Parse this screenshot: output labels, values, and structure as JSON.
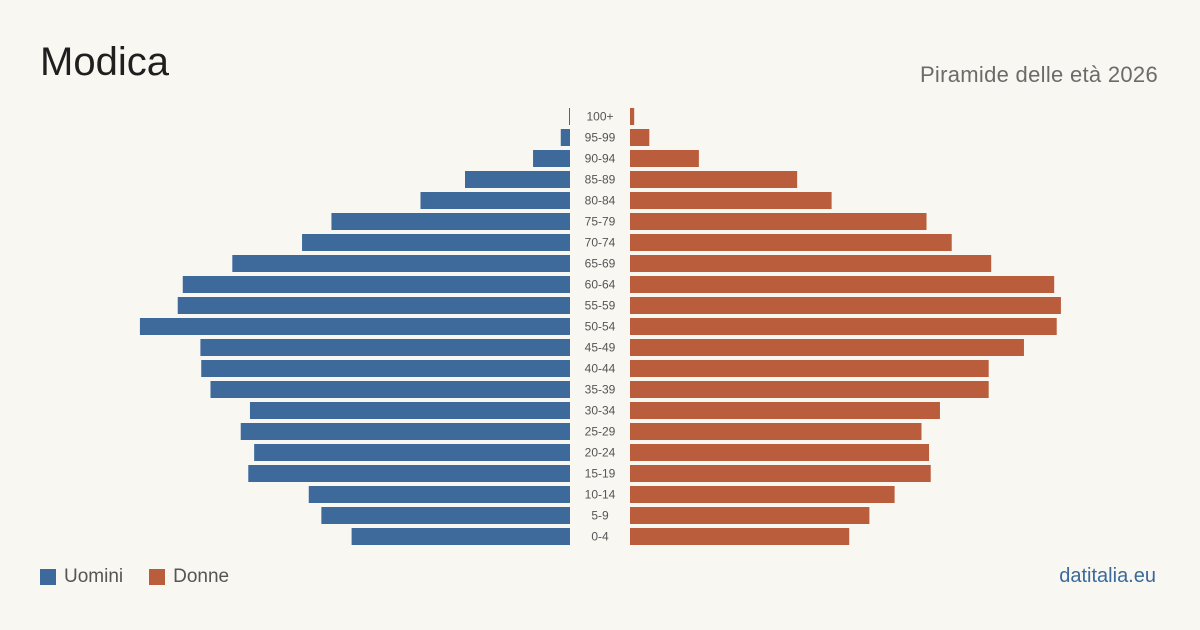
{
  "header": {
    "title": "Modica",
    "subtitle": "Piramide delle età 2026"
  },
  "legend": {
    "men_label": "Uomini",
    "women_label": "Donne"
  },
  "footer": {
    "source": "datitalia.eu"
  },
  "colors": {
    "men": "#3d6a9b",
    "women": "#b95d3c",
    "background": "#f9f7f2"
  },
  "chart_data": {
    "type": "bar",
    "orientation": "horizontal-pyramid",
    "title": "Modica",
    "subtitle": "Piramide delle età 2026",
    "categories": [
      "100+",
      "95-99",
      "90-94",
      "85-89",
      "80-84",
      "75-79",
      "70-74",
      "65-69",
      "60-64",
      "55-59",
      "50-54",
      "45-49",
      "40-44",
      "35-39",
      "30-34",
      "25-29",
      "20-24",
      "15-19",
      "10-14",
      "5-9",
      "0-4"
    ],
    "series": [
      {
        "name": "Uomini",
        "values": [
          1,
          11,
          44,
          125,
          178,
          284,
          319,
          402,
          461,
          467,
          512,
          440,
          439,
          428,
          381,
          392,
          376,
          383,
          311,
          296,
          260
        ]
      },
      {
        "name": "Donne",
        "values": [
          5,
          23,
          82,
          199,
          240,
          353,
          383,
          430,
          505,
          513,
          508,
          469,
          427,
          427,
          369,
          347,
          356,
          358,
          315,
          285,
          261
        ]
      }
    ],
    "legend_position": "bottom-left",
    "grid": false
  }
}
